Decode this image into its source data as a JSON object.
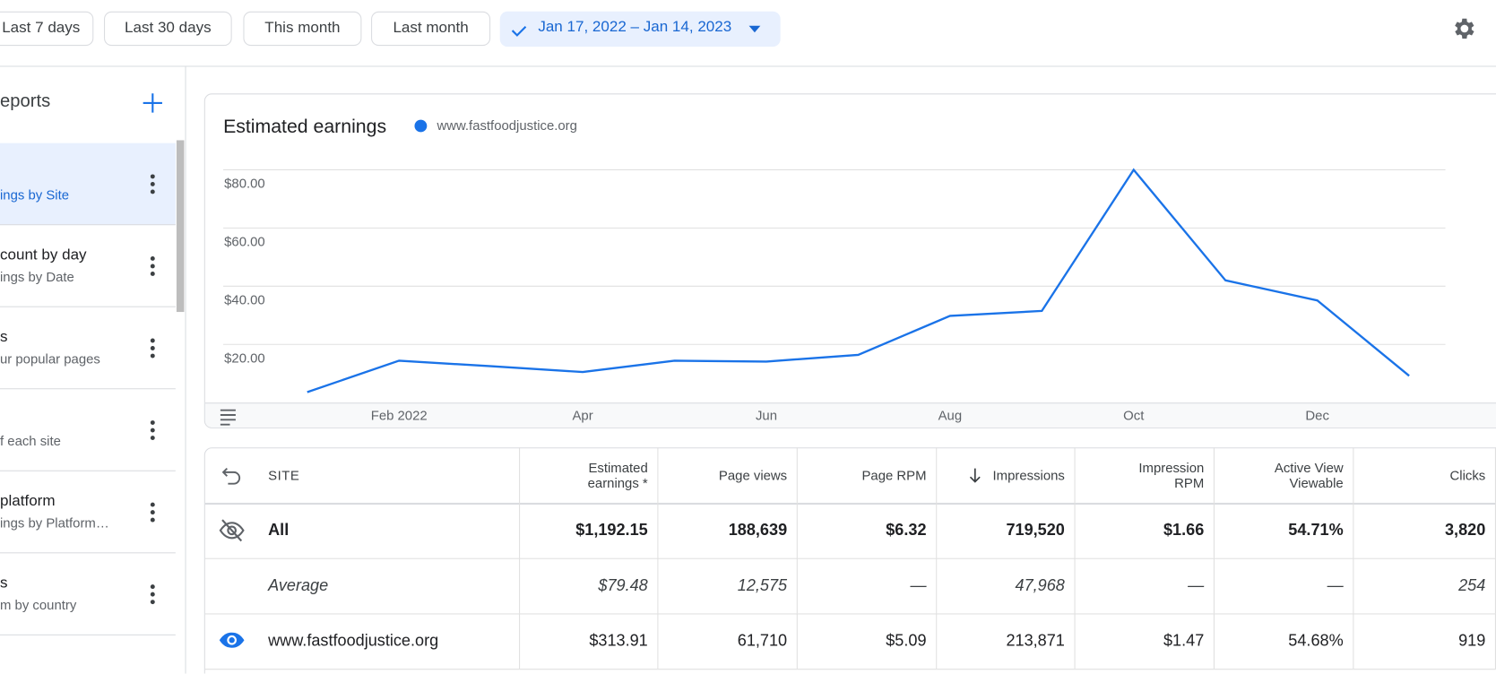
{
  "filters": [
    "Last 7 days",
    "Last 30 days",
    "This month",
    "Last month"
  ],
  "date_range": "Jan 17, 2022 – Jan 14, 2023",
  "sidebar": {
    "title": "eports",
    "items": [
      {
        "subtitle": "ings by Site"
      },
      {
        "title": "count by day",
        "subtitle": "ings by Date"
      },
      {
        "title": "s",
        "subtitle": "ur popular pages"
      },
      {
        "subtitle": "f each site"
      },
      {
        "title": "platform",
        "subtitle": "ings by Platform…"
      },
      {
        "title": "s",
        "subtitle": "m by country"
      }
    ]
  },
  "chart": {
    "type": "line",
    "title": "Estimated earnings",
    "categories": [
      null,
      "Feb 2022",
      null,
      "Apr",
      null,
      "Jun",
      null,
      "Aug",
      null,
      "Oct",
      null,
      "Dec",
      null
    ],
    "series": [
      {
        "name": "www.fastfoodjustice.org",
        "color": "#1a73e8",
        "values": [
          3.6,
          14.4,
          12.5,
          10.5,
          14.4,
          14.1,
          16.4,
          29.8,
          31.5,
          80,
          42,
          35.1,
          9.2
        ]
      }
    ],
    "ylim": [
      0,
      80
    ],
    "yticks": [
      {
        "value": 20,
        "label": "$20.00"
      },
      {
        "value": 40,
        "label": "$40.00"
      },
      {
        "value": 60,
        "label": "$60.00"
      },
      {
        "value": 80,
        "label": "$80.00"
      }
    ],
    "grid": true
  },
  "table": {
    "columns": [
      "SITE",
      "Estimated earnings *",
      "Page views",
      "Page RPM",
      "Impressions",
      "Impression RPM",
      "Active View Viewable",
      "Clicks"
    ],
    "rows": [
      [
        "All",
        "$1,192.15",
        "188,639",
        "$6.32",
        "719,520",
        "$1.66",
        "54.71%",
        "3,820"
      ],
      [
        "Average",
        "$79.48",
        "12,575",
        "—",
        "47,968",
        "—",
        "—",
        "254"
      ],
      [
        "www.fastfoodjustice.org",
        "$313.91",
        "61,710",
        "$5.09",
        "213,871",
        "$1.47",
        "54.68%",
        "919"
      ]
    ]
  }
}
